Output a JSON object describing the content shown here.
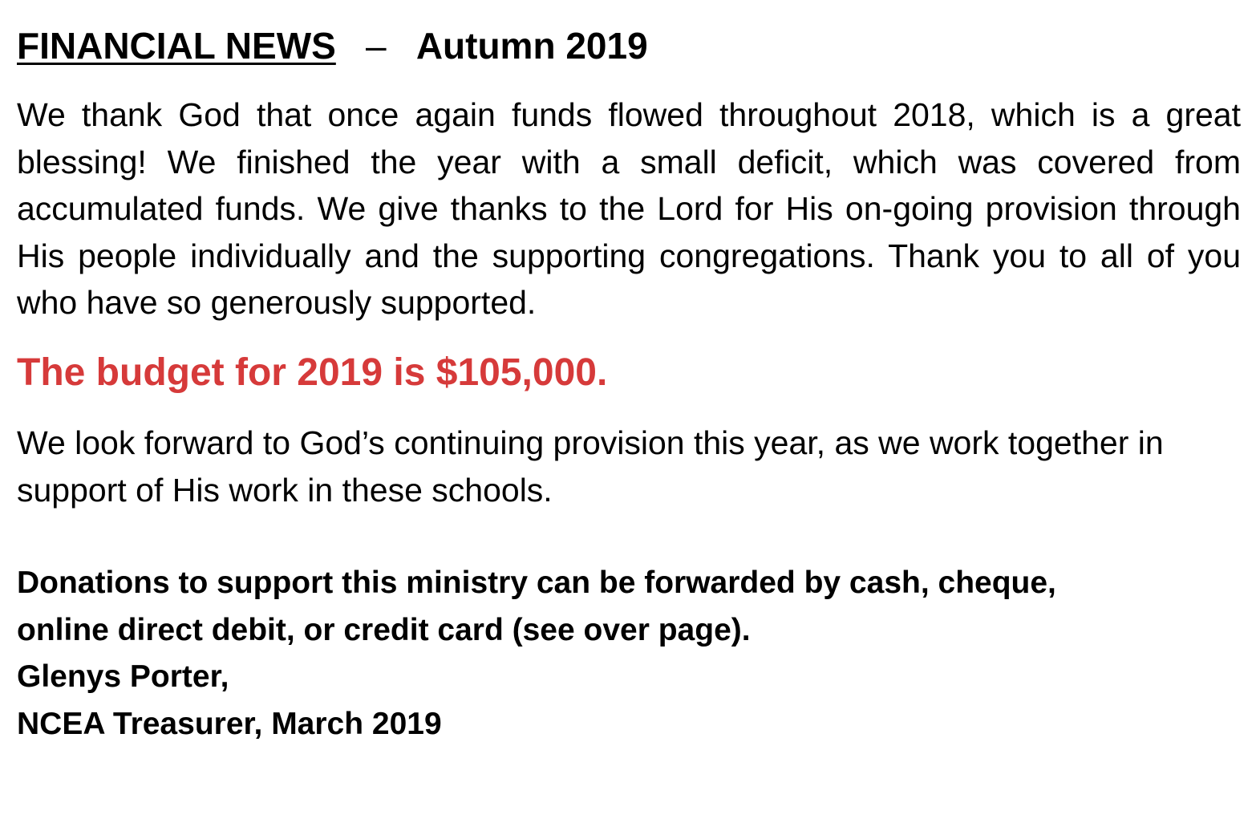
{
  "heading": {
    "title": "FINANCIAL NEWS",
    "separator": "–",
    "season": "Autumn 2019"
  },
  "paragraph1": "We thank God that once again funds flowed throughout 2018, which is a great blessing! We finished the year with a small deficit, which was covered from accumulated funds. We give thanks to the Lord for His on-going provision through His people individually and the supporting congregations. Thank you to all of you who have so generously supported.",
  "budget_statement": "The budget for 2019 is $105,000.",
  "paragraph2": "We look forward to God’s continuing provision this year, as we work together in support of His work in these schools.",
  "signoff": {
    "donations_line1": "Donations to support this ministry can be forwarded by cash, cheque,",
    "donations_line2": "online direct debit, or credit card (see over page).",
    "name": "Glenys Porter,",
    "role": "NCEA Treasurer, March 2019"
  },
  "colors": {
    "text": "#000000",
    "highlight": "#d63a3a",
    "background": "#ffffff"
  }
}
